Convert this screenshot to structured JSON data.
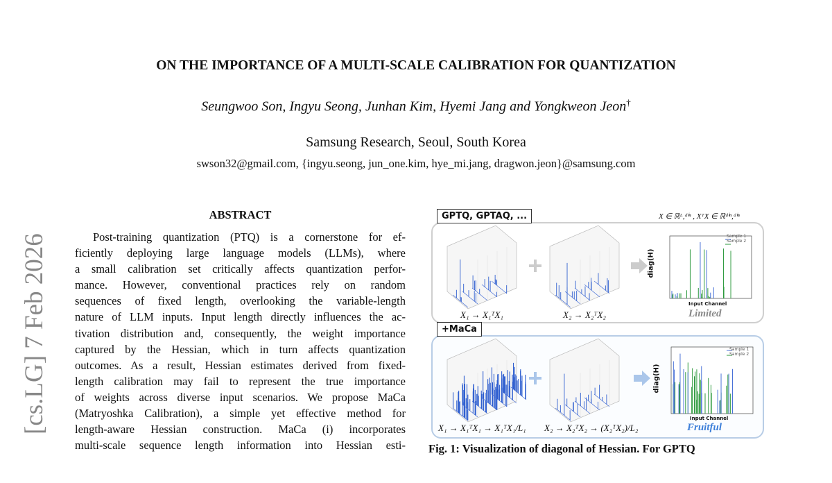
{
  "sidebar": {
    "arxiv_stamp": "[cs.LG]  7 Feb 2026"
  },
  "header": {
    "title": "ON THE IMPORTANCE OF A MULTI-SCALE CALIBRATION FOR QUANTIZATION",
    "authors": "Seungwoo Son, Ingyu Seong, Junhan Kim, Hyemi Jang and Yongkweon Jeon",
    "author_mark": "†",
    "affiliation": "Samsung Research, Seoul, South Korea",
    "emails": "swson32@gmail.com, {ingyu.seong, jun_one.kim, hye_mi.jang, dragwon.jeon}@samsung.com"
  },
  "abstract": {
    "heading": "ABSTRACT",
    "lines": [
      "Post-training quantization (PTQ) is a cornerstone for ef-",
      "ficiently deploying large language models (LLMs), where",
      "a small calibration set critically affects quantization perfor-",
      "mance.  However, conventional practices rely on random",
      "sequences of fixed length, overlooking the variable-length",
      "nature of LLM inputs. Input length directly influences the ac-",
      "tivation distribution and, consequently, the weight importance",
      "captured by the Hessian, which in turn affects quantization",
      "outcomes. As a result, Hessian estimates derived from fixed-",
      "length calibration may fail to represent the true importance",
      "of weights across diverse input scenarios. We propose MaCa",
      "(Matryoshka Calibration), a simple yet effective method for",
      "length-aware Hessian construction.  MaCa (i) incorporates",
      "multi-scale sequence length information into Hessian esti-"
    ]
  },
  "figure": {
    "shape_note": "X ∈ ℝᴸ,ᵈⁱⁿ , XᵀX ∈ ℝᵈⁱⁿ,ᵈⁱⁿ",
    "top_panel": {
      "label": "GPTQ, GPTAQ, ...",
      "formula_1": "X₁ → X₁ᵀX₁",
      "formula_2": "X₂ → X₂ᵀX₂",
      "y_label": "diag(H)",
      "x_label": "Input Channel",
      "legend": [
        "Sample 1",
        "Sample 2"
      ],
      "verdict": "Limited"
    },
    "bottom_panel": {
      "label": "+MaCa",
      "formula_1": "X₁ → X₁ᵀX₁ → X₁ᵀX₁/L₁",
      "formula_2": "X₂ → X₂ᵀX₂ → (X₂ᵀX₂)/L₂",
      "y_label": "diag(H)",
      "x_label": "Input Channel",
      "legend": [
        "Sample 1",
        "Sample 2"
      ],
      "verdict": "Fruitful"
    },
    "caption": "Fig. 1: Visualization of diagonal of Hessian. For GPTQ"
  }
}
